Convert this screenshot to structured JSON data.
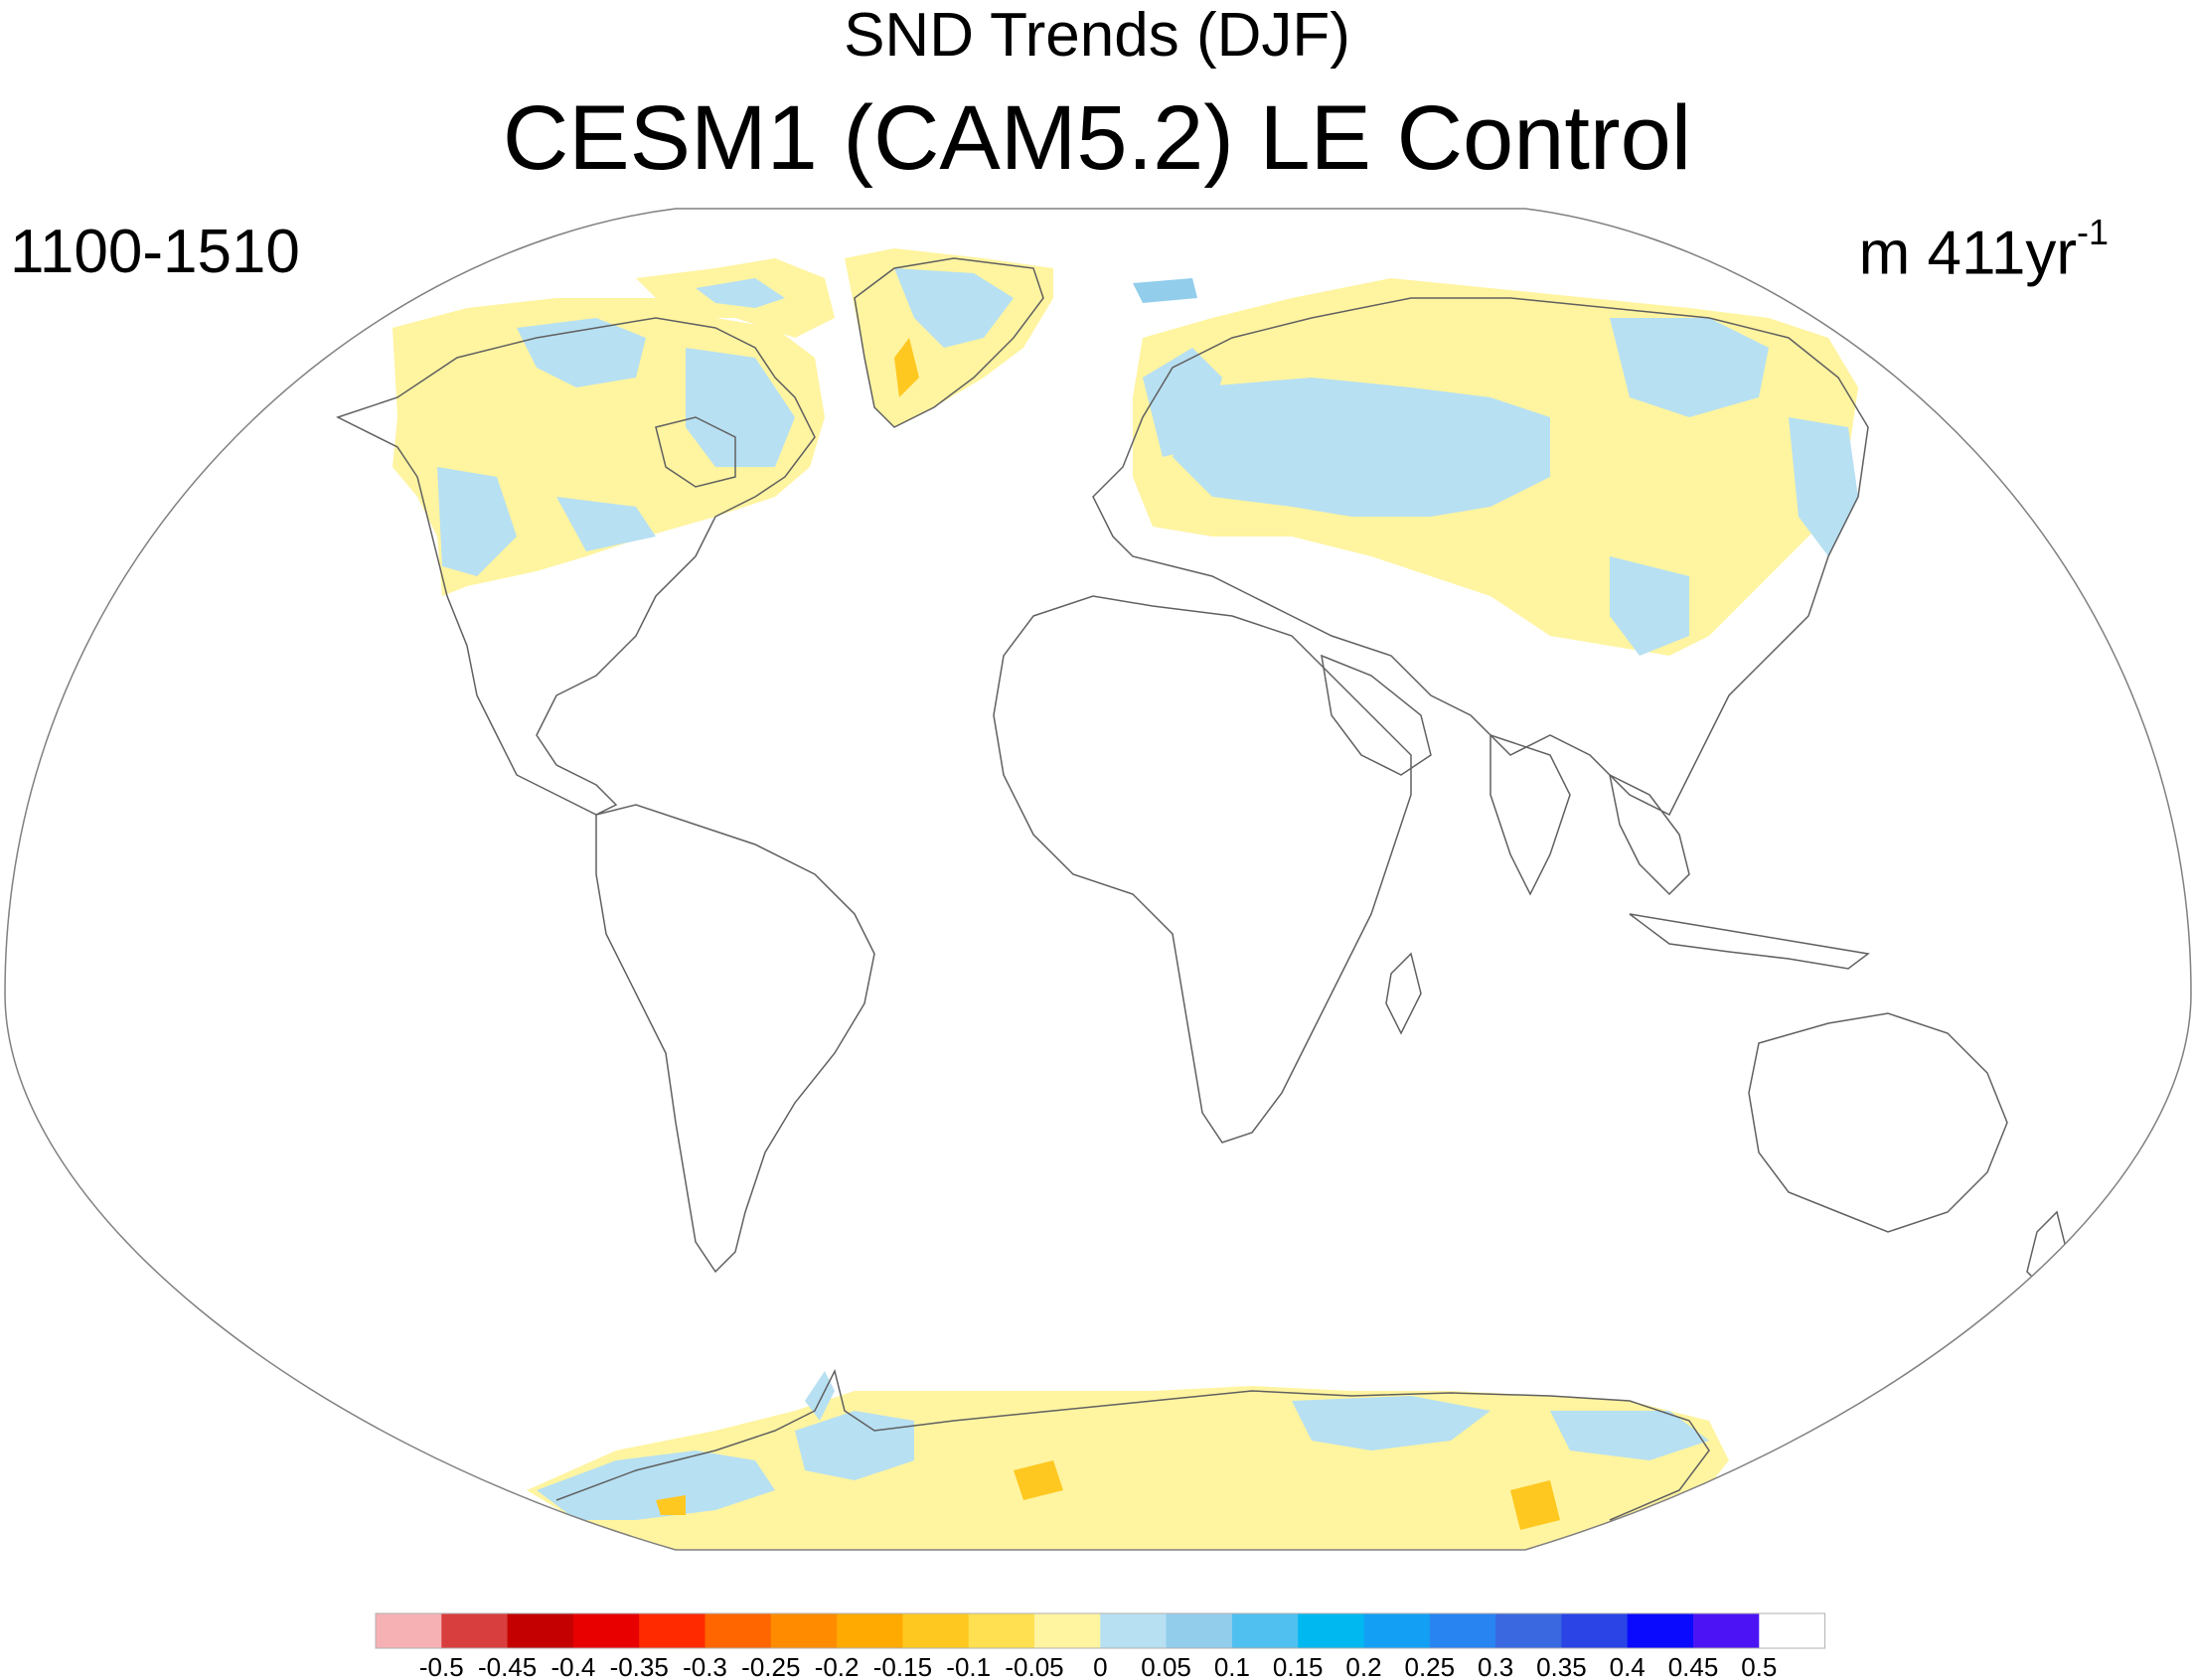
{
  "title": "SND Trends (DJF)",
  "model": "CESM1 (CAM5.2) LE Control",
  "period": "1100-1510",
  "units": {
    "base": "m 411yr",
    "exponent": "-1"
  },
  "projection": "Winkel Tripel",
  "colorbar": {
    "labels": [
      "-0.5",
      "-0.45",
      "-0.4",
      "-0.35",
      "-0.3",
      "-0.25",
      "-0.2",
      "-0.15",
      "-0.1",
      "-0.05",
      "0",
      "0.05",
      "0.1",
      "0.15",
      "0.2",
      "0.25",
      "0.3",
      "0.35",
      "0.4",
      "0.45",
      "0.5"
    ],
    "colors": [
      "#f6b1b5",
      "#d93e3e",
      "#c40000",
      "#e80000",
      "#ff2a00",
      "#ff6600",
      "#ff8c00",
      "#ffaa00",
      "#ffc820",
      "#ffe050",
      "#fff4a0",
      "#b7e0f2",
      "#92cdec",
      "#50c0f0",
      "#00b8f0",
      "#13a0f4",
      "#2884f0",
      "#3a68e0",
      "#2a44e6",
      "#0a0aff",
      "#4c14f4",
      "#ffffff"
    ]
  }
}
